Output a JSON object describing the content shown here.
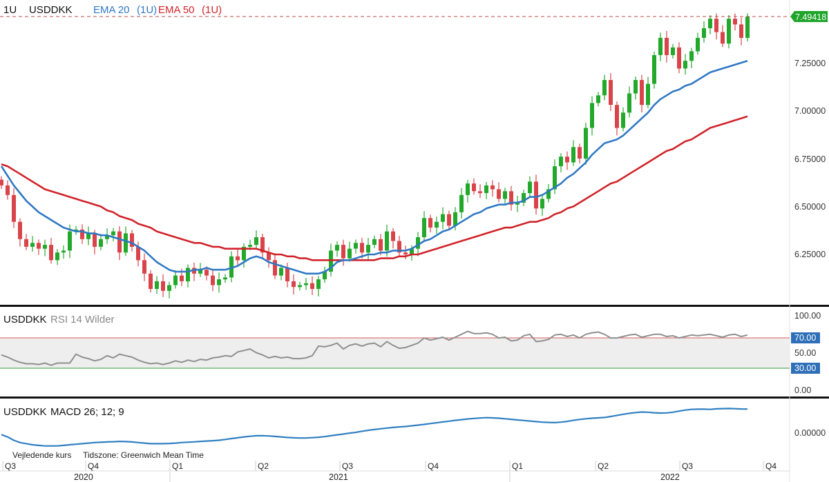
{
  "header": {
    "interval": "1U",
    "symbol": "USDDKK",
    "ema20_label": "EMA 20",
    "ema20_interval": "(1U)",
    "ema50_label": "EMA 50",
    "ema50_interval": "(1U)"
  },
  "rsi_panel": {
    "symbol": "USDDKK",
    "label": "RSI 14 Wilder"
  },
  "macd_panel": {
    "symbol": "USDDKK",
    "label": "MACD 26; 12; 9"
  },
  "footer": {
    "left_note": "Vejledende kurs",
    "timezone": "Tidszone: Greenwich Mean Time"
  },
  "colors": {
    "up": "#22a82a",
    "down": "#d9444a",
    "ema20": "#2f78c4",
    "ema50": "#d0232a",
    "rsi": "#8f8f8f",
    "macd": "#2f7fc1",
    "last_price_bg": "#1ea52a"
  },
  "chart_data": [
    {
      "type": "candlestick",
      "title": "USDDKK",
      "interval": "1U",
      "y_ticks": [
        "7.25000",
        "7.00000",
        "6.75000",
        "6.50000",
        "6.25000"
      ],
      "ylim": [
        6.0,
        7.58
      ],
      "last_price": "7.49418",
      "last_value": 7.494,
      "x_quarters": [
        "Q3",
        "Q4",
        "Q1",
        "Q2",
        "Q3",
        "Q4",
        "Q1",
        "Q2",
        "Q3",
        "Q4"
      ],
      "x_years": [
        "2020",
        "2021",
        "2022"
      ],
      "candles_close": [
        6.61,
        6.56,
        6.42,
        6.33,
        6.29,
        6.31,
        6.28,
        6.3,
        6.22,
        6.26,
        6.27,
        6.37,
        6.38,
        6.33,
        6.36,
        6.29,
        6.33,
        6.35,
        6.37,
        6.26,
        6.36,
        6.29,
        6.22,
        6.15,
        6.07,
        6.11,
        6.06,
        6.09,
        6.14,
        6.11,
        6.18,
        6.15,
        6.17,
        6.14,
        6.09,
        6.12,
        6.13,
        6.24,
        6.22,
        6.29,
        6.3,
        6.34,
        6.26,
        6.22,
        6.14,
        6.18,
        6.11,
        6.08,
        6.09,
        6.1,
        6.07,
        6.12,
        6.16,
        6.27,
        6.3,
        6.23,
        6.28,
        6.31,
        6.26,
        6.3,
        6.33,
        6.27,
        6.37,
        6.32,
        6.26,
        6.25,
        6.28,
        6.34,
        6.44,
        6.39,
        6.42,
        6.46,
        6.4,
        6.47,
        6.56,
        6.62,
        6.58,
        6.57,
        6.61,
        6.59,
        6.54,
        6.58,
        6.51,
        6.52,
        6.57,
        6.63,
        6.49,
        6.54,
        6.59,
        6.71,
        6.76,
        6.73,
        6.81,
        6.75,
        6.91,
        7.04,
        7.08,
        7.16,
        7.03,
        6.91,
        6.99,
        7.09,
        7.16,
        7.03,
        7.14,
        7.29,
        7.38,
        7.29,
        7.33,
        7.22,
        7.26,
        7.31,
        7.38,
        7.43,
        7.48,
        7.41,
        7.35,
        7.48,
        7.45,
        7.38,
        7.49
      ]
    },
    {
      "type": "line",
      "name": "EMA 20",
      "values": [
        6.71,
        6.66,
        6.61,
        6.57,
        6.53,
        6.5,
        6.47,
        6.45,
        6.43,
        6.41,
        6.39,
        6.38,
        6.37,
        6.37,
        6.36,
        6.36,
        6.35,
        6.35,
        6.34,
        6.33,
        6.32,
        6.31,
        6.29,
        6.27,
        6.24,
        6.21,
        6.19,
        6.17,
        6.16,
        6.16,
        6.16,
        6.17,
        6.17,
        6.18,
        6.17,
        6.17,
        6.17,
        6.18,
        6.19,
        6.21,
        6.23,
        6.24,
        6.23,
        6.21,
        6.2,
        6.19,
        6.18,
        6.17,
        6.16,
        6.15,
        6.15,
        6.15,
        6.16,
        6.18,
        6.21,
        6.22,
        6.22,
        6.23,
        6.24,
        6.25,
        6.25,
        6.26,
        6.26,
        6.27,
        6.27,
        6.27,
        6.28,
        6.3,
        6.32,
        6.33,
        6.35,
        6.37,
        6.38,
        6.4,
        6.42,
        6.44,
        6.46,
        6.47,
        6.49,
        6.5,
        6.51,
        6.51,
        6.52,
        6.52,
        6.53,
        6.55,
        6.55,
        6.56,
        6.58,
        6.6,
        6.62,
        6.65,
        6.67,
        6.7,
        6.73,
        6.77,
        6.8,
        6.83,
        6.84,
        6.85,
        6.87,
        6.9,
        6.93,
        6.96,
        6.99,
        7.03,
        7.06,
        7.08,
        7.1,
        7.11,
        7.13,
        7.14,
        7.16,
        7.18,
        7.2,
        7.21,
        7.22,
        7.23,
        7.24,
        7.25,
        7.26
      ]
    },
    {
      "type": "line",
      "name": "EMA 50",
      "values": [
        6.72,
        6.71,
        6.69,
        6.67,
        6.65,
        6.63,
        6.61,
        6.59,
        6.58,
        6.57,
        6.56,
        6.55,
        6.54,
        6.53,
        6.52,
        6.51,
        6.5,
        6.48,
        6.47,
        6.45,
        6.44,
        6.43,
        6.41,
        6.4,
        6.39,
        6.37,
        6.36,
        6.35,
        6.34,
        6.33,
        6.32,
        6.31,
        6.31,
        6.3,
        6.29,
        6.29,
        6.28,
        6.28,
        6.28,
        6.28,
        6.28,
        6.28,
        6.27,
        6.26,
        6.25,
        6.25,
        6.24,
        6.24,
        6.23,
        6.23,
        6.22,
        6.22,
        6.22,
        6.22,
        6.22,
        6.22,
        6.22,
        6.22,
        6.22,
        6.22,
        6.22,
        6.23,
        6.23,
        6.23,
        6.24,
        6.24,
        6.25,
        6.25,
        6.26,
        6.27,
        6.28,
        6.29,
        6.3,
        6.31,
        6.32,
        6.33,
        6.34,
        6.35,
        6.36,
        6.37,
        6.38,
        6.39,
        6.39,
        6.4,
        6.41,
        6.42,
        6.42,
        6.43,
        6.44,
        6.46,
        6.47,
        6.49,
        6.5,
        6.52,
        6.54,
        6.56,
        6.58,
        6.6,
        6.62,
        6.63,
        6.65,
        6.67,
        6.69,
        6.71,
        6.73,
        6.75,
        6.77,
        6.79,
        6.8,
        6.82,
        6.84,
        6.85,
        6.87,
        6.89,
        6.91,
        6.92,
        6.93,
        6.94,
        6.95,
        6.96,
        6.97
      ]
    },
    {
      "type": "line",
      "name": "RSI 14 Wilder",
      "y_ticks": [
        "100.00",
        "70.00",
        "50.00",
        "30.00",
        "0.00"
      ],
      "ylim": [
        0,
        100
      ],
      "levels": [
        70,
        30
      ],
      "values": [
        47,
        44,
        40,
        37,
        35,
        35,
        34,
        36,
        33,
        36,
        36,
        36,
        48,
        44,
        42,
        39,
        41,
        46,
        43,
        48,
        46,
        44,
        40,
        37,
        35,
        36,
        34,
        36,
        39,
        37,
        40,
        38,
        41,
        40,
        43,
        44,
        46,
        45,
        51,
        53,
        55,
        50,
        47,
        43,
        45,
        43,
        44,
        42,
        42,
        43,
        46,
        59,
        58,
        60,
        63,
        55,
        60,
        62,
        59,
        62,
        63,
        58,
        65,
        60,
        56,
        57,
        60,
        63,
        70,
        67,
        69,
        71,
        67,
        71,
        75,
        79,
        76,
        76,
        77,
        75,
        70,
        71,
        66,
        67,
        73,
        75,
        65,
        66,
        68,
        74,
        75,
        72,
        74,
        70,
        75,
        77,
        78,
        75,
        70,
        70,
        72,
        74,
        75,
        71,
        73,
        75,
        75,
        72,
        73,
        70,
        72,
        74,
        73,
        74,
        75,
        73,
        71,
        74,
        75,
        72,
        74
      ]
    },
    {
      "type": "line",
      "name": "MACD 26; 12; 9",
      "y_ticks": [
        "0.00000"
      ],
      "values": [
        -0.02,
        -0.04,
        -0.07,
        -0.09,
        -0.1,
        -0.11,
        -0.115,
        -0.12,
        -0.12,
        -0.12,
        -0.115,
        -0.11,
        -0.105,
        -0.1,
        -0.095,
        -0.09,
        -0.088,
        -0.085,
        -0.083,
        -0.08,
        -0.082,
        -0.085,
        -0.09,
        -0.095,
        -0.1,
        -0.1,
        -0.1,
        -0.098,
        -0.095,
        -0.09,
        -0.087,
        -0.084,
        -0.08,
        -0.077,
        -0.074,
        -0.07,
        -0.063,
        -0.055,
        -0.048,
        -0.04,
        -0.035,
        -0.03,
        -0.03,
        -0.032,
        -0.036,
        -0.04,
        -0.045,
        -0.048,
        -0.05,
        -0.05,
        -0.047,
        -0.043,
        -0.038,
        -0.03,
        -0.022,
        -0.015,
        -0.007,
        0.0,
        0.01,
        0.018,
        0.025,
        0.032,
        0.038,
        0.043,
        0.048,
        0.052,
        0.058,
        0.064,
        0.07,
        0.078,
        0.085,
        0.092,
        0.099,
        0.106,
        0.112,
        0.118,
        0.123,
        0.127,
        0.13,
        0.128,
        0.125,
        0.12,
        0.115,
        0.11,
        0.105,
        0.1,
        0.095,
        0.09,
        0.088,
        0.086,
        0.09,
        0.097,
        0.106,
        0.114,
        0.12,
        0.125,
        0.128,
        0.132,
        0.14,
        0.15,
        0.16,
        0.168,
        0.175,
        0.18,
        0.178,
        0.173,
        0.171,
        0.172,
        0.178,
        0.188,
        0.197,
        0.203,
        0.205,
        0.205,
        0.203,
        0.208,
        0.21,
        0.211,
        0.209,
        0.207,
        0.206
      ]
    }
  ]
}
